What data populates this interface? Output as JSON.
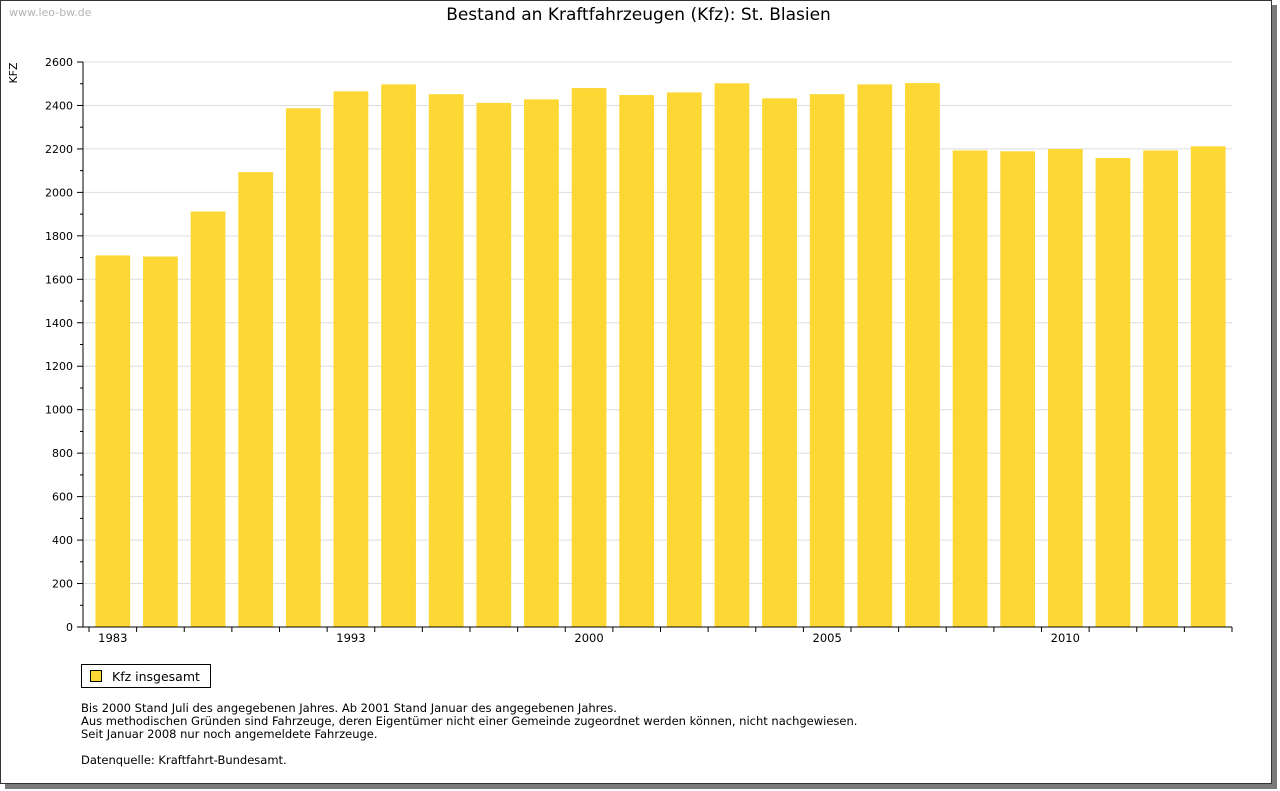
{
  "watermark": "www.leo-bw.de",
  "legend": {
    "label": "Kfz insgesamt"
  },
  "notes": [
    "Bis 2000 Stand Juli des angegebenen Jahres. Ab 2001 Stand Januar des angegebenen Jahres.",
    "Aus methodischen Gründen sind Fahrzeuge, deren Eigentümer nicht einer Gemeinde zugeordnet werden können, nicht nachgewiesen.",
    "Seit Januar 2008 nur noch angemeldete Fahrzeuge."
  ],
  "source": "Datenquelle: Kraftfahrt-Bundesamt.",
  "colors": {
    "bar": "#fdd835",
    "grid": "#dddddd",
    "axis": "#000000"
  },
  "chart_data": {
    "type": "bar",
    "title": "Bestand an Kraftfahrzeugen (Kfz): St. Blasien",
    "xlabel": "",
    "ylabel": "KFZ",
    "ylim": [
      0,
      2600
    ],
    "yticks": [
      0,
      200,
      400,
      600,
      800,
      1000,
      1200,
      1400,
      1600,
      1800,
      2000,
      2200,
      2400,
      2600
    ],
    "grid": true,
    "legend_position": "bottom-left",
    "categories": [
      "1983",
      "",
      "",
      "",
      "",
      "1993",
      "",
      "",
      "",
      "",
      "2000",
      "",
      "",
      "",
      "",
      "2005",
      "",
      "",
      "",
      "",
      "2010",
      "",
      "",
      ""
    ],
    "series": [
      {
        "name": "Kfz insgesamt",
        "values": [
          1710,
          1705,
          1912,
          2093,
          2387,
          2465,
          2497,
          2452,
          2412,
          2428,
          2480,
          2448,
          2460,
          2502,
          2433,
          2452,
          2497,
          2503,
          2193,
          2189,
          2200,
          2158,
          2193,
          2212
        ]
      }
    ]
  }
}
